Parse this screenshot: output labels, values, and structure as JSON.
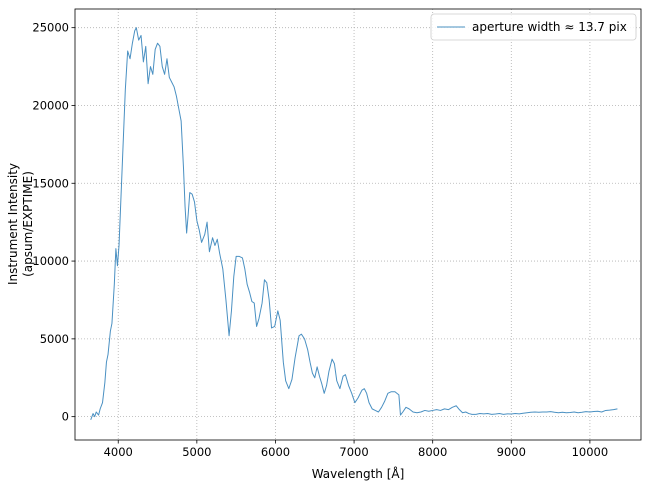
{
  "chart_data": {
    "type": "line",
    "title": "",
    "xlabel": "Wavelength [Å]",
    "ylabel_lines": [
      "Instrument Intensity",
      "(apsum/EXPTIME)"
    ],
    "xlim": [
      3450,
      10650
    ],
    "ylim": [
      -1500,
      26200
    ],
    "x_ticks": [
      4000,
      5000,
      6000,
      7000,
      8000,
      9000,
      10000
    ],
    "y_ticks": [
      0,
      5000,
      10000,
      15000,
      20000,
      25000
    ],
    "grid": true,
    "legend_position": "top-right",
    "line_color": "#4a90c2",
    "series": [
      {
        "name": "aperture width ≈ 13.7 pix",
        "points": [
          [
            3650,
            -200
          ],
          [
            3680,
            200
          ],
          [
            3700,
            0
          ],
          [
            3720,
            300
          ],
          [
            3750,
            100
          ],
          [
            3770,
            500
          ],
          [
            3800,
            900
          ],
          [
            3830,
            2200
          ],
          [
            3850,
            3500
          ],
          [
            3870,
            4000
          ],
          [
            3900,
            5500
          ],
          [
            3920,
            6000
          ],
          [
            3950,
            8500
          ],
          [
            3970,
            10800
          ],
          [
            3990,
            9700
          ],
          [
            4010,
            11000
          ],
          [
            4050,
            16000
          ],
          [
            4090,
            21000
          ],
          [
            4120,
            23500
          ],
          [
            4150,
            23000
          ],
          [
            4180,
            24000
          ],
          [
            4210,
            24800
          ],
          [
            4230,
            25000
          ],
          [
            4260,
            24200
          ],
          [
            4290,
            24500
          ],
          [
            4320,
            22800
          ],
          [
            4350,
            23800
          ],
          [
            4380,
            21400
          ],
          [
            4410,
            22500
          ],
          [
            4440,
            22000
          ],
          [
            4470,
            23600
          ],
          [
            4500,
            24000
          ],
          [
            4530,
            23800
          ],
          [
            4560,
            22500
          ],
          [
            4590,
            22000
          ],
          [
            4620,
            23000
          ],
          [
            4650,
            21800
          ],
          [
            4680,
            21500
          ],
          [
            4710,
            21200
          ],
          [
            4740,
            20600
          ],
          [
            4770,
            19800
          ],
          [
            4800,
            19000
          ],
          [
            4830,
            16000
          ],
          [
            4850,
            13500
          ],
          [
            4870,
            11800
          ],
          [
            4890,
            13000
          ],
          [
            4910,
            14400
          ],
          [
            4940,
            14300
          ],
          [
            4970,
            13800
          ],
          [
            5000,
            12600
          ],
          [
            5030,
            12000
          ],
          [
            5060,
            11200
          ],
          [
            5100,
            11700
          ],
          [
            5130,
            12500
          ],
          [
            5160,
            10600
          ],
          [
            5200,
            11500
          ],
          [
            5230,
            11000
          ],
          [
            5260,
            11400
          ],
          [
            5290,
            10500
          ],
          [
            5330,
            9500
          ],
          [
            5370,
            7500
          ],
          [
            5410,
            5200
          ],
          [
            5440,
            6800
          ],
          [
            5470,
            9000
          ],
          [
            5500,
            10300
          ],
          [
            5540,
            10300
          ],
          [
            5580,
            10200
          ],
          [
            5610,
            9500
          ],
          [
            5640,
            8500
          ],
          [
            5670,
            8000
          ],
          [
            5700,
            7400
          ],
          [
            5730,
            7300
          ],
          [
            5760,
            5800
          ],
          [
            5790,
            6300
          ],
          [
            5830,
            7300
          ],
          [
            5860,
            8800
          ],
          [
            5890,
            8600
          ],
          [
            5920,
            7500
          ],
          [
            5950,
            5700
          ],
          [
            5990,
            5800
          ],
          [
            6030,
            6800
          ],
          [
            6060,
            6200
          ],
          [
            6100,
            3500
          ],
          [
            6130,
            2300
          ],
          [
            6170,
            1800
          ],
          [
            6210,
            2400
          ],
          [
            6250,
            3800
          ],
          [
            6300,
            5200
          ],
          [
            6330,
            5300
          ],
          [
            6370,
            5000
          ],
          [
            6410,
            4300
          ],
          [
            6440,
            3500
          ],
          [
            6470,
            2800
          ],
          [
            6500,
            2500
          ],
          [
            6530,
            3200
          ],
          [
            6560,
            2600
          ],
          [
            6590,
            2100
          ],
          [
            6620,
            1500
          ],
          [
            6650,
            2000
          ],
          [
            6680,
            2900
          ],
          [
            6720,
            3700
          ],
          [
            6750,
            3400
          ],
          [
            6780,
            2300
          ],
          [
            6820,
            1800
          ],
          [
            6860,
            2600
          ],
          [
            6890,
            2700
          ],
          [
            6930,
            2000
          ],
          [
            6970,
            1500
          ],
          [
            7010,
            900
          ],
          [
            7050,
            1200
          ],
          [
            7100,
            1700
          ],
          [
            7130,
            1800
          ],
          [
            7160,
            1500
          ],
          [
            7190,
            900
          ],
          [
            7230,
            500
          ],
          [
            7270,
            400
          ],
          [
            7310,
            300
          ],
          [
            7350,
            600
          ],
          [
            7390,
            1000
          ],
          [
            7430,
            1500
          ],
          [
            7470,
            1600
          ],
          [
            7520,
            1600
          ],
          [
            7570,
            1400
          ],
          [
            7590,
            100
          ],
          [
            7620,
            300
          ],
          [
            7660,
            600
          ],
          [
            7700,
            500
          ],
          [
            7750,
            300
          ],
          [
            7800,
            250
          ],
          [
            7850,
            300
          ],
          [
            7900,
            400
          ],
          [
            7950,
            350
          ],
          [
            8000,
            400
          ],
          [
            8050,
            450
          ],
          [
            8100,
            400
          ],
          [
            8150,
            500
          ],
          [
            8200,
            450
          ],
          [
            8250,
            600
          ],
          [
            8300,
            700
          ],
          [
            8340,
            450
          ],
          [
            8380,
            250
          ],
          [
            8420,
            300
          ],
          [
            8460,
            200
          ],
          [
            8500,
            150
          ],
          [
            8550,
            150
          ],
          [
            8600,
            200
          ],
          [
            8650,
            180
          ],
          [
            8700,
            200
          ],
          [
            8750,
            150
          ],
          [
            8800,
            170
          ],
          [
            8850,
            200
          ],
          [
            8900,
            150
          ],
          [
            8950,
            180
          ],
          [
            9000,
            170
          ],
          [
            9050,
            200
          ],
          [
            9100,
            180
          ],
          [
            9150,
            220
          ],
          [
            9200,
            250
          ],
          [
            9250,
            280
          ],
          [
            9300,
            300
          ],
          [
            9350,
            280
          ],
          [
            9400,
            300
          ],
          [
            9450,
            300
          ],
          [
            9500,
            320
          ],
          [
            9550,
            280
          ],
          [
            9600,
            250
          ],
          [
            9650,
            280
          ],
          [
            9700,
            250
          ],
          [
            9750,
            270
          ],
          [
            9800,
            300
          ],
          [
            9850,
            250
          ],
          [
            9900,
            280
          ],
          [
            9950,
            320
          ],
          [
            10000,
            300
          ],
          [
            10050,
            330
          ],
          [
            10100,
            350
          ],
          [
            10150,
            300
          ],
          [
            10200,
            400
          ],
          [
            10250,
            420
          ],
          [
            10300,
            450
          ],
          [
            10350,
            500
          ]
        ]
      }
    ]
  }
}
